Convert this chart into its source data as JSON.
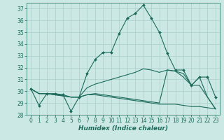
{
  "xlabel": "Humidex (Indice chaleur)",
  "xlim": [
    -0.5,
    23.5
  ],
  "ylim": [
    28,
    37.5
  ],
  "yticks": [
    28,
    29,
    30,
    31,
    32,
    33,
    34,
    35,
    36,
    37
  ],
  "xticks": [
    0,
    1,
    2,
    3,
    4,
    5,
    6,
    7,
    8,
    9,
    10,
    11,
    12,
    13,
    14,
    15,
    16,
    17,
    18,
    19,
    20,
    21,
    22,
    23
  ],
  "line_color": "#1a6b5a",
  "bg_color": "#cce8e4",
  "grid_color": "#aacfcb",
  "lines": [
    [
      30.2,
      28.8,
      29.8,
      29.8,
      29.7,
      28.3,
      29.5,
      31.5,
      32.7,
      33.3,
      33.3,
      34.9,
      36.2,
      36.6,
      37.3,
      36.2,
      35.0,
      33.2,
      31.8,
      31.8,
      30.5,
      31.2,
      31.2,
      29.5
    ],
    [
      30.2,
      29.8,
      29.8,
      29.7,
      29.7,
      29.5,
      29.5,
      30.3,
      30.6,
      30.8,
      31.0,
      31.2,
      31.4,
      31.6,
      31.9,
      31.8,
      31.6,
      31.8,
      31.7,
      31.5,
      30.5,
      30.5,
      29.5,
      28.5
    ],
    [
      30.2,
      29.8,
      29.8,
      29.7,
      29.6,
      29.5,
      29.5,
      29.7,
      29.7,
      29.6,
      29.5,
      29.4,
      29.3,
      29.2,
      29.1,
      29.0,
      28.9,
      28.9,
      28.9,
      28.8,
      28.7,
      28.7,
      28.6,
      28.5
    ],
    [
      30.2,
      29.8,
      29.8,
      29.7,
      29.6,
      29.5,
      29.5,
      29.7,
      29.8,
      29.7,
      29.6,
      29.5,
      29.4,
      29.3,
      29.2,
      29.1,
      29.0,
      31.8,
      31.7,
      31.2,
      30.5,
      31.2,
      29.5,
      28.5
    ]
  ],
  "marker": "D",
  "markersize": 2.0,
  "tick_fontsize": 5.5,
  "xlabel_fontsize": 6.5
}
